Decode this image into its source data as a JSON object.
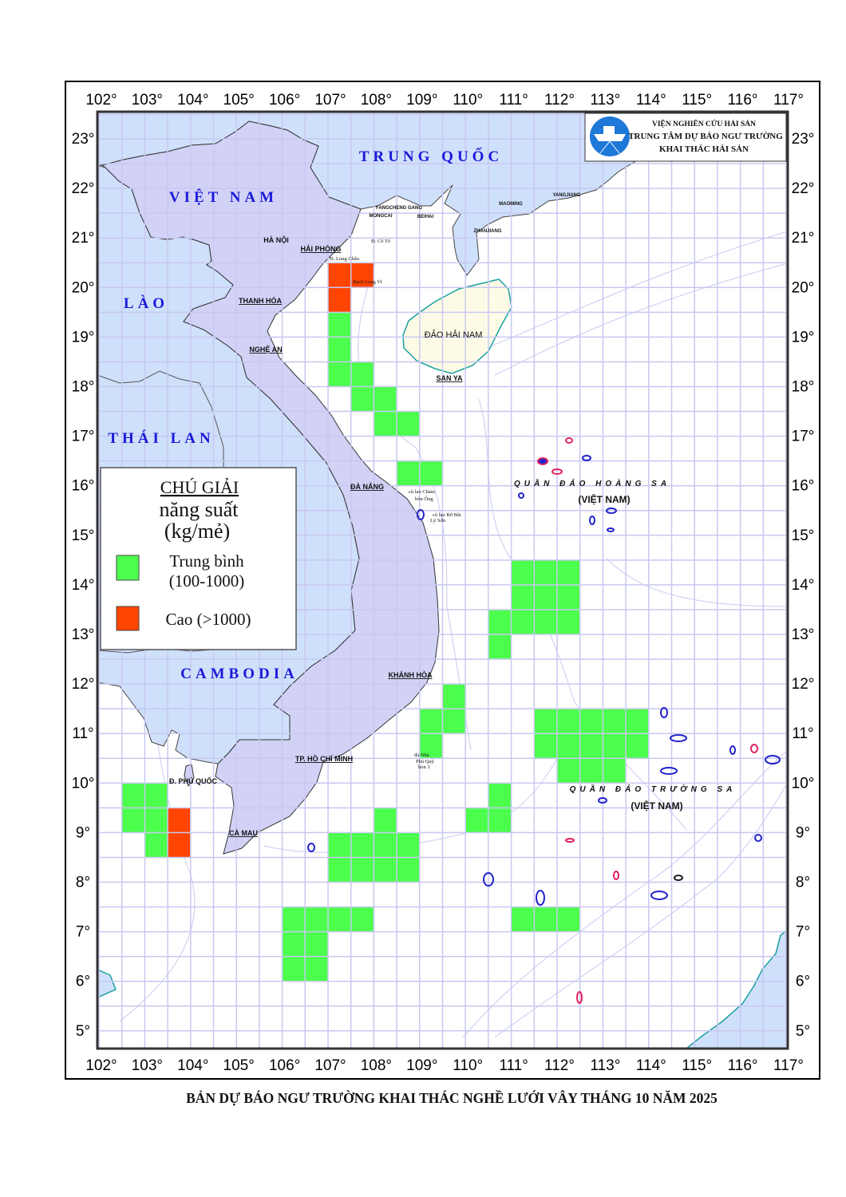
{
  "map": {
    "lon_labels": [
      "102°",
      "103°",
      "104°",
      "105°",
      "106°",
      "107°",
      "108°",
      "109°",
      "110°",
      "111°",
      "112°",
      "113°",
      "114°",
      "115°",
      "116°",
      "117°"
    ],
    "lat_labels": [
      "23°",
      "22°",
      "21°",
      "20°",
      "19°",
      "18°",
      "17°",
      "16°",
      "15°",
      "14°",
      "13°",
      "12°",
      "11°",
      "10°",
      "9°",
      "8°",
      "7°",
      "6°",
      "5°"
    ],
    "grid_step_deg": 0.5,
    "countries": {
      "china": "TRUNG QUỐC",
      "vietnam": "VIỆT NAM",
      "laos": "LÀO",
      "thailand": "THÁI LAN",
      "cambodia": "CAMBODIA"
    },
    "places": {
      "ha_noi": "HÀ NỘI",
      "hai_phong": "HẢI PHÒNG",
      "thanh_hoa": "THANH HÓA",
      "nghe_an": "NGHỆ AN",
      "da_nang": "ĐÀ NẴNG",
      "khanh_hoa": "KHÁNH HÒA",
      "hcm": "TP. HỒ CHÍ MINH",
      "phu_quoc": "Đ. PHÚ QUỐC",
      "ca_mau": "CÀ MAU",
      "hainan": "ĐẢO HẢI NAM",
      "san_ya": "SAN YA",
      "fangcheng": "FANGCHENG GANG",
      "mongcai": "MONGCAI",
      "beihai": "BEIHAI",
      "zhanjiang": "ZHANJIANG",
      "maoming": "MAOMING",
      "yangjiang": "YANGJIANG",
      "co_to": "Đ. Cô Tô",
      "long_chau": "Đ. Long Châu",
      "bach_long_vi": "Bạch Long Vĩ",
      "cu_lao_cham": "cù lao Chàm",
      "hon_ong": "hòn Ông",
      "cu_lao_bo_bai": "cù lao Bờ Bãi",
      "ly_son": "Lý Sơn",
      "da_nha": "đá Nhà",
      "phu_quy": "Phú Quý",
      "hon_3": "hòn 3"
    },
    "archipelagos": {
      "hoang_sa": "QUẦN ĐẢO HOÀNG SA",
      "hoang_sa_sub": "(VIỆT NAM)",
      "truong_sa": "QUẦN ĐẢO TRƯỜNG SA",
      "truong_sa_sub": "(VIỆT NAM)"
    },
    "colors": {
      "medium": "#4cff4c",
      "high": "#ff4500",
      "vietnam_land": "#d2d2f7",
      "other_land": "#cfe0fb",
      "hainan": "#fdfbe6",
      "grid": "#c8c8f2"
    },
    "cells": [
      {
        "lon": 107,
        "lat": 20,
        "level": "high"
      },
      {
        "lon": 107.5,
        "lat": 20,
        "level": "high"
      },
      {
        "lon": 107,
        "lat": 19.5,
        "level": "high"
      },
      {
        "lon": 107,
        "lat": 19,
        "level": "medium"
      },
      {
        "lon": 107,
        "lat": 18.5,
        "level": "medium"
      },
      {
        "lon": 107,
        "lat": 18,
        "level": "medium"
      },
      {
        "lon": 107.5,
        "lat": 18,
        "level": "medium"
      },
      {
        "lon": 107.5,
        "lat": 17.5,
        "level": "medium"
      },
      {
        "lon": 108,
        "lat": 17.5,
        "level": "medium"
      },
      {
        "lon": 108,
        "lat": 17,
        "level": "medium"
      },
      {
        "lon": 108.5,
        "lat": 17,
        "level": "medium"
      },
      {
        "lon": 108.5,
        "lat": 16,
        "level": "medium"
      },
      {
        "lon": 109,
        "lat": 16,
        "level": "medium"
      },
      {
        "lon": 111,
        "lat": 14,
        "level": "medium"
      },
      {
        "lon": 111.5,
        "lat": 14,
        "level": "medium"
      },
      {
        "lon": 112,
        "lat": 14,
        "level": "medium"
      },
      {
        "lon": 111,
        "lat": 13.5,
        "level": "medium"
      },
      {
        "lon": 111.5,
        "lat": 13.5,
        "level": "medium"
      },
      {
        "lon": 112,
        "lat": 13.5,
        "level": "medium"
      },
      {
        "lon": 110.5,
        "lat": 13,
        "level": "medium"
      },
      {
        "lon": 111,
        "lat": 13,
        "level": "medium"
      },
      {
        "lon": 111.5,
        "lat": 13,
        "level": "medium"
      },
      {
        "lon": 112,
        "lat": 13,
        "level": "medium"
      },
      {
        "lon": 110.5,
        "lat": 12.5,
        "level": "medium"
      },
      {
        "lon": 109.5,
        "lat": 11.5,
        "level": "medium"
      },
      {
        "lon": 109.5,
        "lat": 11,
        "level": "medium"
      },
      {
        "lon": 109,
        "lat": 11,
        "level": "medium"
      },
      {
        "lon": 109,
        "lat": 10.5,
        "level": "medium"
      },
      {
        "lon": 111.5,
        "lat": 11,
        "level": "medium"
      },
      {
        "lon": 112,
        "lat": 11,
        "level": "medium"
      },
      {
        "lon": 112.5,
        "lat": 11,
        "level": "medium"
      },
      {
        "lon": 113,
        "lat": 11,
        "level": "medium"
      },
      {
        "lon": 113.5,
        "lat": 11,
        "level": "medium"
      },
      {
        "lon": 111.5,
        "lat": 10.5,
        "level": "medium"
      },
      {
        "lon": 112,
        "lat": 10.5,
        "level": "medium"
      },
      {
        "lon": 112.5,
        "lat": 10.5,
        "level": "medium"
      },
      {
        "lon": 113,
        "lat": 10.5,
        "level": "medium"
      },
      {
        "lon": 113.5,
        "lat": 10.5,
        "level": "medium"
      },
      {
        "lon": 112,
        "lat": 10,
        "level": "medium"
      },
      {
        "lon": 112.5,
        "lat": 10,
        "level": "medium"
      },
      {
        "lon": 113,
        "lat": 10,
        "level": "medium"
      },
      {
        "lon": 110.5,
        "lat": 9.5,
        "level": "medium"
      },
      {
        "lon": 110,
        "lat": 9,
        "level": "medium"
      },
      {
        "lon": 110.5,
        "lat": 9,
        "level": "medium"
      },
      {
        "lon": 102.5,
        "lat": 9.5,
        "level": "medium"
      },
      {
        "lon": 103,
        "lat": 9.5,
        "level": "medium"
      },
      {
        "lon": 102.5,
        "lat": 9,
        "level": "medium"
      },
      {
        "lon": 103,
        "lat": 9,
        "level": "medium"
      },
      {
        "lon": 103,
        "lat": 8.5,
        "level": "medium"
      },
      {
        "lon": 103.5,
        "lat": 9,
        "level": "high"
      },
      {
        "lon": 103.5,
        "lat": 8.5,
        "level": "high"
      },
      {
        "lon": 108,
        "lat": 9,
        "level": "medium"
      },
      {
        "lon": 107,
        "lat": 8.5,
        "level": "medium"
      },
      {
        "lon": 107.5,
        "lat": 8.5,
        "level": "medium"
      },
      {
        "lon": 108,
        "lat": 8.5,
        "level": "medium"
      },
      {
        "lon": 108.5,
        "lat": 8.5,
        "level": "medium"
      },
      {
        "lon": 107,
        "lat": 8,
        "level": "medium"
      },
      {
        "lon": 107.5,
        "lat": 8,
        "level": "medium"
      },
      {
        "lon": 108,
        "lat": 8,
        "level": "medium"
      },
      {
        "lon": 108.5,
        "lat": 8,
        "level": "medium"
      },
      {
        "lon": 106,
        "lat": 7,
        "level": "medium"
      },
      {
        "lon": 106.5,
        "lat": 7,
        "level": "medium"
      },
      {
        "lon": 107,
        "lat": 7,
        "level": "medium"
      },
      {
        "lon": 107.5,
        "lat": 7,
        "level": "medium"
      },
      {
        "lon": 106,
        "lat": 6.5,
        "level": "medium"
      },
      {
        "lon": 106.5,
        "lat": 6.5,
        "level": "medium"
      },
      {
        "lon": 106,
        "lat": 6,
        "level": "medium"
      },
      {
        "lon": 106.5,
        "lat": 6,
        "level": "medium"
      },
      {
        "lon": 111,
        "lat": 7,
        "level": "medium"
      },
      {
        "lon": 111.5,
        "lat": 7,
        "level": "medium"
      },
      {
        "lon": 112,
        "lat": 7,
        "level": "medium"
      }
    ]
  },
  "legend": {
    "title": "CHÚ GIẢI",
    "subtitle1": "năng suất",
    "subtitle2": "(kg/mẻ)",
    "items": [
      {
        "label1": "Trung bình",
        "label2": "(100-1000)",
        "level": "medium"
      },
      {
        "label1": "Cao (>1000)",
        "label2": "",
        "level": "high"
      }
    ]
  },
  "logo": {
    "line1": "VIỆN NGHIÊN CỨU HẢI SẢN",
    "line2": "TRUNG TÂM DỰ BÁO NGƯ TRƯỜNG",
    "line3": "KHAI THÁC HẢI SẢN"
  },
  "title": "BẢN DỰ BÁO NGƯ TRƯỜNG KHAI THÁC NGHỀ LƯỚI VÂY THÁNG 10 NĂM 2025"
}
